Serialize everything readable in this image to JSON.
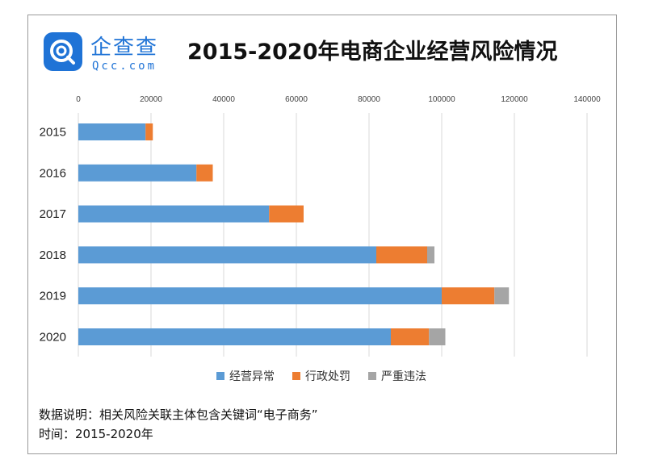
{
  "header": {
    "title": "2015-2020年电商企业经营风险情况",
    "logo_cn": "企查查",
    "logo_en": "Qcc.com"
  },
  "chart_data": {
    "type": "bar",
    "orientation": "horizontal",
    "stacked": true,
    "title": "2015-2020年电商企业经营风险情况",
    "categories": [
      "2015",
      "2016",
      "2017",
      "2018",
      "2019",
      "2020"
    ],
    "series": [
      {
        "name": "经营异常",
        "color": "#5b9bd5",
        "values": [
          18500,
          32500,
          52500,
          82000,
          100000,
          86000
        ]
      },
      {
        "name": "行政处罚",
        "color": "#ed7d31",
        "values": [
          2000,
          4500,
          9500,
          14000,
          14500,
          10500
        ]
      },
      {
        "name": "严重违法",
        "color": "#a5a5a5",
        "values": [
          0,
          0,
          0,
          2000,
          4000,
          4500
        ]
      }
    ],
    "x_ticks": [
      "0",
      "20000",
      "40000",
      "60000",
      "80000",
      "100000",
      "120000",
      "140000"
    ],
    "xlim": [
      0,
      140000
    ],
    "x_axis_position": "top",
    "grid": true,
    "legend_position": "bottom"
  },
  "footer": {
    "note_line1": "数据说明：相关风险关联主体包含关键词“电子商务”",
    "note_line2": "时间：2015-2020年"
  }
}
